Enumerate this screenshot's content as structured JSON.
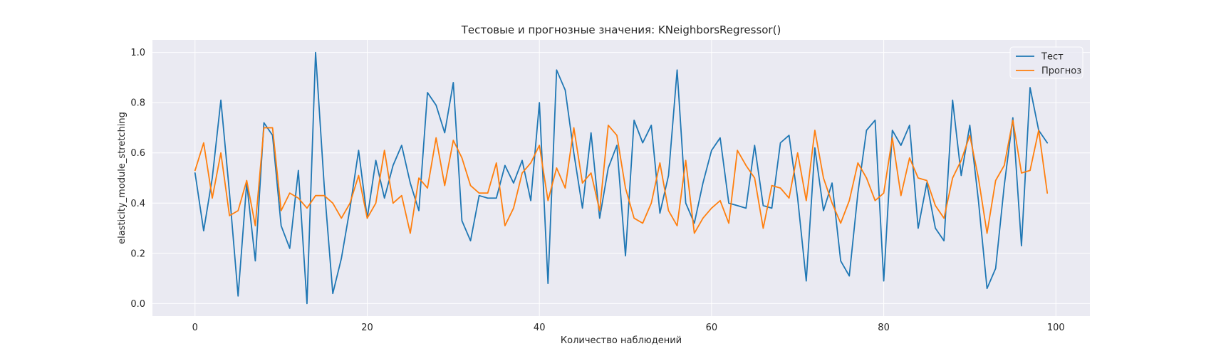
{
  "chart_data": {
    "type": "line",
    "title": "Тестовые и прогнозные значения: KNeighborsRegressor()",
    "xlabel": "Количество наблюдений",
    "ylabel": "elasticity_module_stretching",
    "xlim": [
      -4.95,
      103.95
    ],
    "ylim": [
      -0.05,
      1.05
    ],
    "xticks": [
      0,
      20,
      40,
      60,
      80,
      100
    ],
    "yticks": [
      0.0,
      0.2,
      0.4,
      0.6,
      0.8,
      1.0
    ],
    "xtick_labels": [
      "0",
      "20",
      "40",
      "60",
      "80",
      "100"
    ],
    "ytick_labels": [
      "0.0",
      "0.2",
      "0.4",
      "0.6",
      "0.8",
      "1.0"
    ],
    "grid": true,
    "legend": "top-right",
    "background": "#eaeaf2",
    "series": [
      {
        "name": "Тест",
        "color": "#1f77b4",
        "values": [
          0.52,
          0.29,
          0.5,
          0.81,
          0.44,
          0.03,
          0.48,
          0.17,
          0.72,
          0.67,
          0.31,
          0.22,
          0.53,
          0.0,
          1.0,
          0.47,
          0.04,
          0.18,
          0.38,
          0.61,
          0.34,
          0.57,
          0.42,
          0.55,
          0.63,
          0.48,
          0.37,
          0.84,
          0.79,
          0.68,
          0.88,
          0.33,
          0.25,
          0.43,
          0.42,
          0.42,
          0.55,
          0.48,
          0.57,
          0.41,
          0.8,
          0.08,
          0.93,
          0.85,
          0.6,
          0.38,
          0.68,
          0.34,
          0.54,
          0.63,
          0.19,
          0.73,
          0.64,
          0.71,
          0.36,
          0.51,
          0.93,
          0.4,
          0.32,
          0.48,
          0.61,
          0.66,
          0.4,
          0.39,
          0.38,
          0.63,
          0.39,
          0.38,
          0.64,
          0.67,
          0.42,
          0.09,
          0.62,
          0.37,
          0.48,
          0.17,
          0.11,
          0.44,
          0.69,
          0.73,
          0.09,
          0.69,
          0.63,
          0.71,
          0.3,
          0.48,
          0.3,
          0.25,
          0.81,
          0.51,
          0.71,
          0.41,
          0.06,
          0.14,
          0.47,
          0.74,
          0.23,
          0.86,
          0.69,
          0.64
        ]
      },
      {
        "name": "Прогноз",
        "color": "#ff7f0e",
        "values": [
          0.53,
          0.64,
          0.42,
          0.6,
          0.35,
          0.37,
          0.49,
          0.31,
          0.7,
          0.7,
          0.37,
          0.44,
          0.42,
          0.38,
          0.43,
          0.43,
          0.4,
          0.34,
          0.4,
          0.51,
          0.34,
          0.4,
          0.61,
          0.4,
          0.43,
          0.28,
          0.5,
          0.46,
          0.66,
          0.47,
          0.65,
          0.58,
          0.47,
          0.44,
          0.44,
          0.56,
          0.31,
          0.38,
          0.52,
          0.56,
          0.63,
          0.41,
          0.54,
          0.46,
          0.7,
          0.48,
          0.52,
          0.37,
          0.71,
          0.67,
          0.46,
          0.34,
          0.32,
          0.4,
          0.56,
          0.37,
          0.31,
          0.57,
          0.28,
          0.34,
          0.38,
          0.41,
          0.32,
          0.61,
          0.55,
          0.5,
          0.3,
          0.47,
          0.46,
          0.42,
          0.6,
          0.41,
          0.69,
          0.5,
          0.4,
          0.32,
          0.41,
          0.56,
          0.5,
          0.41,
          0.44,
          0.66,
          0.43,
          0.58,
          0.5,
          0.49,
          0.39,
          0.34,
          0.5,
          0.57,
          0.67,
          0.5,
          0.28,
          0.49,
          0.55,
          0.73,
          0.52,
          0.53,
          0.69,
          0.44
        ]
      }
    ]
  }
}
